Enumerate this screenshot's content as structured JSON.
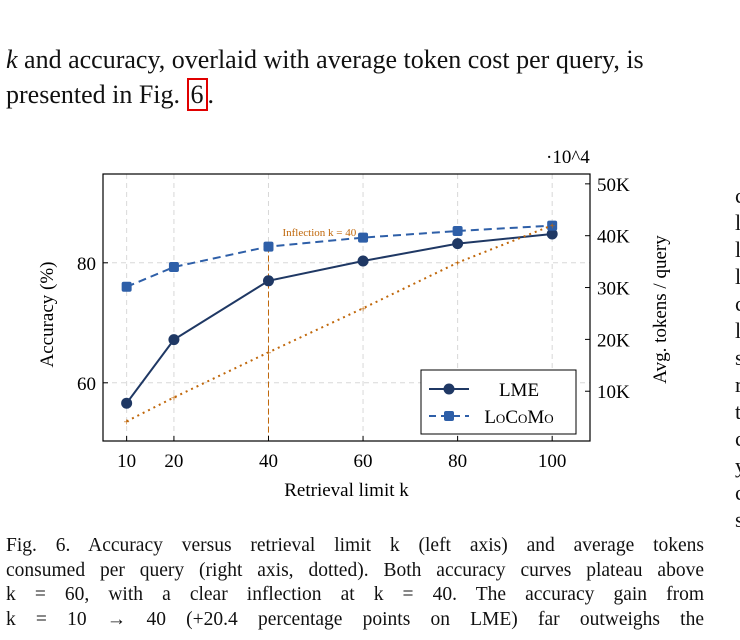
{
  "body_text": {
    "line1_var": "k",
    "line1": " and accuracy, overlaid with average token cost per query, is",
    "line2_pre": "presented in Fig. ",
    "line2_ref": "6",
    "line2_post": "."
  },
  "caption": {
    "lines": [
      "Fig. 6.  Accuracy versus retrieval limit k (left axis) and average tokens",
      "consumed per query (right axis, dotted). Both accuracy curves plateau above",
      "k = 60, with a clear inflection at k = 40. The accuracy gain from",
      "k = 10 → 40 (+20.4 percentage points on LME) far outweighs the"
    ]
  },
  "right_column_fragments": [
    "c",
    "l",
    "l",
    "l",
    "c",
    "l",
    "s",
    "r",
    "t",
    "c",
    "y",
    "c",
    "s"
  ],
  "chart_data": {
    "type": "line",
    "xlabel": "Retrieval limit k",
    "ylabel": "Accuracy (%)",
    "y2label": "Avg. tokens / query",
    "y2_multiplier": "·10^4",
    "x": [
      10,
      20,
      40,
      60,
      80,
      100
    ],
    "x_ticks": [
      "10",
      "20",
      "40",
      "60",
      "80",
      "100"
    ],
    "xlim": [
      5,
      108
    ],
    "ylim": [
      50.3,
      94.8
    ],
    "y_ticks": [
      "60",
      "80"
    ],
    "y_tick_values": [
      60,
      80
    ],
    "y2lim": [
      400,
      51900
    ],
    "y2_ticks": [
      "10K",
      "20K",
      "30K",
      "40K",
      "50K"
    ],
    "y2_tick_values": [
      10000,
      20000,
      30000,
      40000,
      50000
    ],
    "grid": true,
    "legend_placement": "bottom-right",
    "series": [
      {
        "name": "LME",
        "axis": "left",
        "style": "solid",
        "marker": "circle",
        "color": "#1f3864",
        "values": [
          56.6,
          67.2,
          77.0,
          80.3,
          83.2,
          84.8
        ]
      },
      {
        "name": "LoCoMo",
        "axis": "left",
        "style": "dashed",
        "marker": "square",
        "color": "#2e5fa8",
        "values": [
          76.0,
          79.3,
          82.7,
          84.2,
          85.3,
          86.2
        ]
      },
      {
        "axis": "right",
        "style": "dotted",
        "marker": "plus",
        "color": "#c0670a",
        "values": [
          4200,
          8800,
          17500,
          26000,
          34800,
          42000
        ]
      }
    ],
    "annotation": {
      "text": "Inflection k = 40",
      "x": 40,
      "color": "#c0670a"
    }
  }
}
